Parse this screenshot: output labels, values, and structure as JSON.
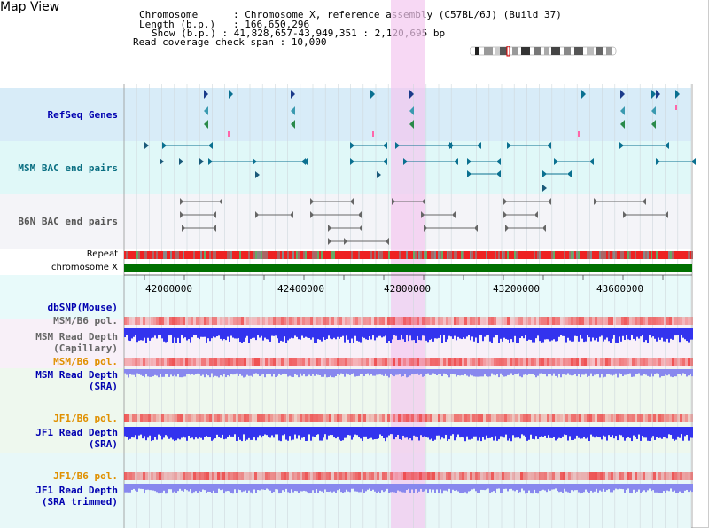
{
  "page_title": "Map View",
  "header": {
    "chromosome_key": "Chromosome",
    "chromosome_value": ": Chromosome X, reference assembly (C57BL/6J) (Build 37)",
    "length_key": "Length (b.p.)",
    "length_value": ": 166,650,296",
    "show_key": "Show (b.p.)",
    "show_value": ": 41,828,657-43,949,351 : 2,120,695 bp",
    "coverage": "Read coverage check span : 10,000"
  },
  "tracks": {
    "refseq": "RefSeq Genes",
    "msm_bac": "MSM BAC end pairs",
    "b6n_bac": "B6N BAC end pairs",
    "repeat": "Repeat",
    "chromosome": "chromosome X",
    "dbsnp": "dbSNP(Mouse)",
    "msm_b6_pol_1": "MSM/B6 pol.",
    "msm_read_depth_cap_1": "MSM Read Depth",
    "msm_read_depth_cap_2": "(Capillary)",
    "msm_b6_pol_2": "MSM/B6 pol.",
    "msm_read_depth_sra_1": "MSM Read Depth",
    "msm_read_depth_sra_2": "(SRA)",
    "jf1_b6_pol_1": "JF1/B6 pol.",
    "jf1_read_depth_sra_1": "JF1 Read Depth",
    "jf1_read_depth_sra_2": "(SRA)",
    "jf1_b6_pol_2": "JF1/B6 pol.",
    "jf1_read_depth_trim_1": "JF1 Read Depth",
    "jf1_read_depth_trim_2": "(SRA trimmed)"
  },
  "axis": {
    "ticks": [
      "42000000",
      "42400000",
      "42800000",
      "43200000",
      "43600000"
    ]
  },
  "colors": {
    "refseq_bg": "#d8ecf8",
    "msm_bac_bg": "#e0f8f8",
    "b6n_bac_bg": "#f4f4f8",
    "highlight": "#f4c8f0",
    "chromosome_bar": "#007000",
    "depth_blue": "#3333ee",
    "depth_lightblue": "#8888ee",
    "pol_red": "#ee3333"
  }
}
